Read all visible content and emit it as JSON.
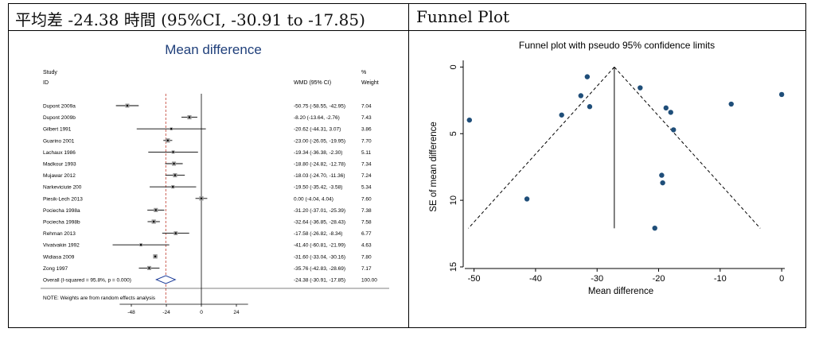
{
  "left_panel": {
    "header": "平均差 -24.38 時間 (95%CI, -30.91 to -17.85)"
  },
  "right_panel": {
    "header": "Funnel Plot"
  },
  "chart_data": [
    {
      "type": "forest",
      "title": "Mean difference",
      "columns": {
        "study_line1": "Study",
        "study_line2": "ID",
        "effect": "WMD (95% CI)",
        "weight_line1": "%",
        "weight_line2": "Weight"
      },
      "studies": [
        {
          "id": "Dupont 2009a",
          "wmd": -50.75,
          "lo": -58.55,
          "hi": -42.95,
          "ci_text": "-50.75 (-58.55, -42.95)",
          "weight": "7.04"
        },
        {
          "id": "Dupont 2009b",
          "wmd": -8.2,
          "lo": -13.64,
          "hi": -2.76,
          "ci_text": "-8.20 (-13.64, -2.76)",
          "weight": "7.43"
        },
        {
          "id": "Gilbert 1991",
          "wmd": -20.62,
          "lo": -44.31,
          "hi": 3.07,
          "ci_text": "-20.62 (-44.31, 3.07)",
          "weight": "3.86"
        },
        {
          "id": "Guarino 2001",
          "wmd": -23.0,
          "lo": -26.05,
          "hi": -19.95,
          "ci_text": "-23.00 (-26.05, -19.95)",
          "weight": "7.70"
        },
        {
          "id": "Lachaux 1986",
          "wmd": -19.34,
          "lo": -36.38,
          "hi": -2.3,
          "ci_text": "-19.34 (-36.38, -2.30)",
          "weight": "5.11"
        },
        {
          "id": "Madkour 1993",
          "wmd": -18.8,
          "lo": -24.82,
          "hi": -12.78,
          "ci_text": "-18.80 (-24.82, -12.78)",
          "weight": "7.34"
        },
        {
          "id": "Mujawar 2012",
          "wmd": -18.03,
          "lo": -24.7,
          "hi": -11.36,
          "ci_text": "-18.03 (-24.70, -11.36)",
          "weight": "7.24"
        },
        {
          "id": "Narkeviciute 200",
          "wmd": -19.5,
          "lo": -35.42,
          "hi": -3.58,
          "ci_text": "-19.50 (-35.42, -3.58)",
          "weight": "5.34"
        },
        {
          "id": "Piesik-Lech 2013",
          "wmd": 0.0,
          "lo": -4.04,
          "hi": 4.04,
          "ci_text": "0.00 (-4.04, 4.04)",
          "weight": "7.60"
        },
        {
          "id": "Pociecha 1998a",
          "wmd": -31.2,
          "lo": -37.01,
          "hi": -25.39,
          "ci_text": "-31.20 (-37.01, -25.39)",
          "weight": "7.38"
        },
        {
          "id": "Pociecha 1998b",
          "wmd": -32.64,
          "lo": -36.85,
          "hi": -28.43,
          "ci_text": "-32.64 (-36.85, -28.43)",
          "weight": "7.58"
        },
        {
          "id": "Rehman 2013",
          "wmd": -17.58,
          "lo": -26.82,
          "hi": -8.34,
          "ci_text": "-17.58 (-26.82, -8.34)",
          "weight": "6.77"
        },
        {
          "id": "Vivatvakin 1992",
          "wmd": -41.4,
          "lo": -60.81,
          "hi": -21.99,
          "ci_text": "-41.40 (-60.81, -21.99)",
          "weight": "4.63"
        },
        {
          "id": "Widiasa 2009",
          "wmd": -31.6,
          "lo": -33.04,
          "hi": -30.16,
          "ci_text": "-31.60 (-33.04, -30.16)",
          "weight": "7.80"
        },
        {
          "id": "Zong 1997",
          "wmd": -35.76,
          "lo": -42.83,
          "hi": -28.69,
          "ci_text": "-35.76 (-42.83, -28.69)",
          "weight": "7.17"
        }
      ],
      "overall": {
        "label": "Overall  (I-squared = 95.8%, p = 0.000)",
        "wmd": -24.38,
        "lo": -30.91,
        "hi": -17.85,
        "ci_text": "-24.38 (-30.91, -17.85)",
        "weight": "100.00"
      },
      "note": "NOTE: Weights are from random effects analysis",
      "x_ticks": [
        "-48",
        "-24",
        "0",
        "24"
      ],
      "xlim": [
        -64,
        36
      ]
    },
    {
      "type": "scatter",
      "title": "Funnel plot with pseudo 95% confidence limits",
      "xlabel": "Mean difference",
      "ylabel": "SE of mean difference",
      "x_ticks": [
        "-50",
        "-40",
        "-30",
        "-20",
        "-10",
        "0"
      ],
      "y_ticks": [
        "0",
        "5",
        "10",
        "15"
      ],
      "xlim": [
        -51.5,
        0.5
      ],
      "ylim": [
        15,
        -0.5
      ],
      "y_reversed": true,
      "pooled_estimate": -27.2,
      "funnel_apex_se": 0,
      "funnel_base_se": 12.1,
      "points": [
        {
          "x": -50.75,
          "se": 3.98
        },
        {
          "x": -41.4,
          "se": 9.9
        },
        {
          "x": -35.76,
          "se": 3.6
        },
        {
          "x": -32.64,
          "se": 2.15
        },
        {
          "x": -31.6,
          "se": 0.73
        },
        {
          "x": -31.2,
          "se": 2.97
        },
        {
          "x": -23.0,
          "se": 1.56
        },
        {
          "x": -20.62,
          "se": 12.09
        },
        {
          "x": -19.5,
          "se": 8.12
        },
        {
          "x": -19.34,
          "se": 8.69
        },
        {
          "x": -18.8,
          "se": 3.07
        },
        {
          "x": -18.03,
          "se": 3.4
        },
        {
          "x": -17.58,
          "se": 4.71
        },
        {
          "x": -8.2,
          "se": 2.78
        },
        {
          "x": 0.0,
          "se": 2.06
        }
      ]
    }
  ]
}
